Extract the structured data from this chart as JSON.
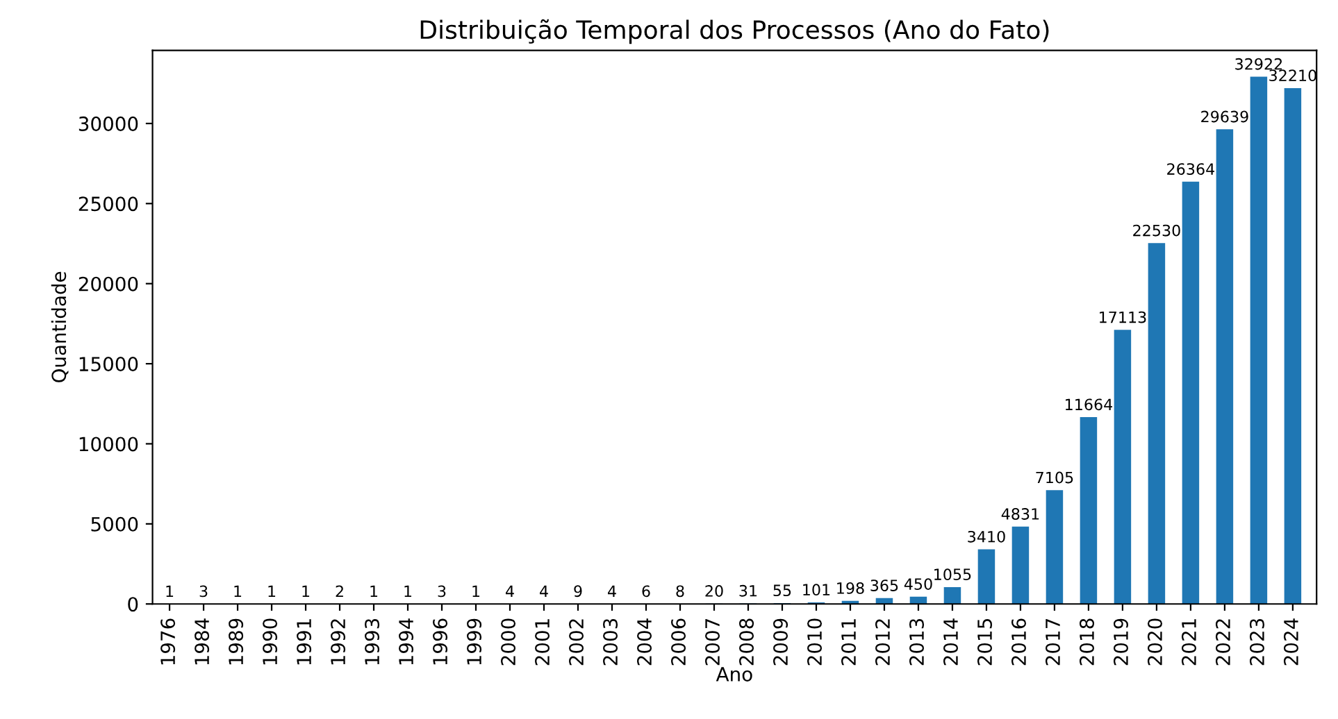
{
  "chart_data": {
    "type": "bar",
    "title": "Distribuição Temporal dos Processos (Ano do Fato)",
    "xlabel": "Ano",
    "ylabel": "Quantidade",
    "categories": [
      "1976",
      "1984",
      "1989",
      "1990",
      "1991",
      "1992",
      "1993",
      "1994",
      "1996",
      "1999",
      "2000",
      "2001",
      "2002",
      "2003",
      "2004",
      "2006",
      "2007",
      "2008",
      "2009",
      "2010",
      "2011",
      "2012",
      "2013",
      "2014",
      "2015",
      "2016",
      "2017",
      "2018",
      "2019",
      "2020",
      "2021",
      "2022",
      "2023",
      "2024"
    ],
    "values": [
      1,
      3,
      1,
      1,
      1,
      2,
      1,
      1,
      3,
      1,
      4,
      4,
      9,
      4,
      6,
      8,
      20,
      31,
      55,
      101,
      198,
      365,
      450,
      1055,
      3410,
      4831,
      7105,
      11664,
      17113,
      22530,
      26364,
      29639,
      32922,
      32210
    ],
    "color": "#1f77b4",
    "ylim": [
      0,
      34568
    ],
    "yticks": [
      0,
      5000,
      10000,
      15000,
      20000,
      25000,
      30000
    ],
    "data_labels": true,
    "grid": false
  }
}
